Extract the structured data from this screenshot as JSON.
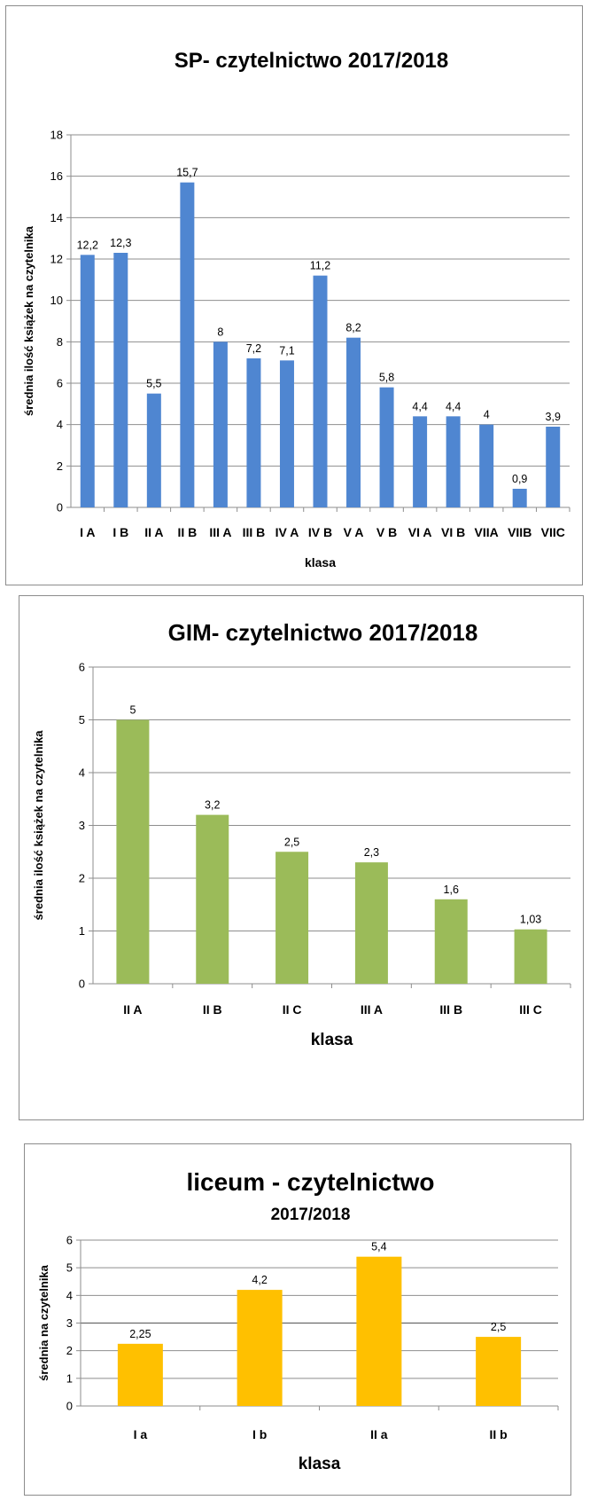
{
  "chart_data": [
    {
      "type": "bar",
      "title": "SP- czytelnictwo 2017/2018",
      "subtitle": "",
      "xlabel": "klasa",
      "ylabel": "średnia  ilość  książek  na  czytelnika",
      "ylim": [
        0,
        18
      ],
      "yticks": [
        0,
        2,
        4,
        6,
        8,
        10,
        12,
        14,
        16,
        18
      ],
      "grid": true,
      "color": "#4f86d1",
      "categories": [
        "I A",
        "I B",
        "II A",
        "II B",
        "III A",
        "III B",
        "IV A",
        "IV B",
        "V A",
        "V B",
        "VI A",
        "VI B",
        "VIIA",
        "VIIB",
        "VIIC"
      ],
      "values": [
        12.2,
        12.3,
        5.5,
        15.7,
        8,
        7.2,
        7.1,
        11.2,
        8.2,
        5.8,
        4.4,
        4.4,
        4,
        0.9,
        3.9
      ],
      "labels": [
        "12,2",
        "12,3",
        "5,5",
        "15,7",
        "8",
        "7,2",
        "7,1",
        "11,2",
        "8,2",
        "5,8",
        "4,4",
        "4,4",
        "4",
        "0,9",
        "3,9"
      ]
    },
    {
      "type": "bar",
      "title": "GIM- czytelnictwo 2017/2018",
      "subtitle": "",
      "xlabel": "klasa",
      "ylabel": "średnia  ilość  książek  na czytelnika",
      "ylim": [
        0,
        6
      ],
      "yticks": [
        0,
        1,
        2,
        3,
        4,
        5,
        6
      ],
      "grid": true,
      "color": "#9bbb59",
      "categories": [
        "II A",
        "II B",
        "II C",
        "III A",
        "III B",
        "III C"
      ],
      "values": [
        5,
        3.2,
        2.5,
        2.3,
        1.6,
        1.03
      ],
      "labels": [
        "5",
        "3,2",
        "2,5",
        "2,3",
        "1,6",
        "1,03"
      ]
    },
    {
      "type": "bar",
      "title": "liceum - czytelnictwo",
      "subtitle": "2017/2018",
      "xlabel": "klasa",
      "ylabel": "średnia na czytelnika",
      "ylim": [
        0,
        6
      ],
      "yticks": [
        0,
        1,
        2,
        3,
        4,
        5,
        6
      ],
      "grid": true,
      "color": "#ffc000",
      "categories": [
        "I a",
        "I b",
        "II a",
        "II b"
      ],
      "values": [
        2.25,
        4.2,
        5.4,
        2.5
      ],
      "labels": [
        "2,25",
        "4,2",
        "5,4",
        "2,5"
      ]
    }
  ]
}
